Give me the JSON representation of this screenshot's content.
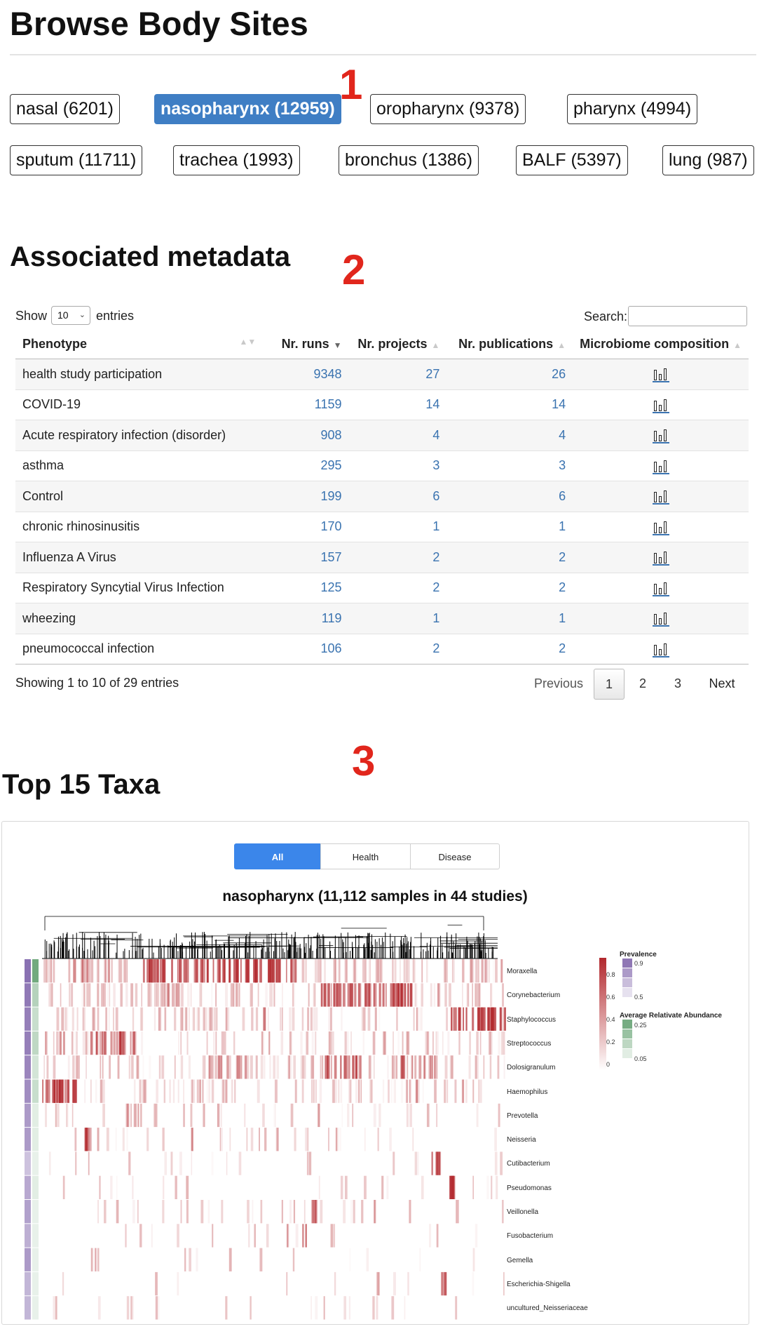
{
  "body_sites": {
    "title": "Browse Body Sites",
    "buttons": [
      {
        "label": "nasal (6201)",
        "active": false
      },
      {
        "label": "nasopharynx (12959)",
        "active": true
      },
      {
        "label": "oropharynx (9378)",
        "active": false
      },
      {
        "label": "pharynx (4994)",
        "active": false
      },
      {
        "label": "sputum (11711)",
        "active": false
      },
      {
        "label": "trachea (1993)",
        "active": false
      },
      {
        "label": "bronchus (1386)",
        "active": false
      },
      {
        "label": "BALF (5397)",
        "active": false
      },
      {
        "label": "lung (987)",
        "active": false
      }
    ]
  },
  "markers": [
    "1",
    "2",
    "3"
  ],
  "metadata": {
    "title": "Associated metadata",
    "show_label": "Show",
    "show_value": "10",
    "entries_label": "entries",
    "search_label": "Search:",
    "search_value": "",
    "columns": [
      "Phenotype",
      "Nr. runs",
      "Nr. projects",
      "Nr. publications",
      "Microbiome composition"
    ],
    "sorted_column": "Nr. runs",
    "rows": [
      {
        "phenotype": "health study participation",
        "runs": "9348",
        "projects": "27",
        "publications": "26"
      },
      {
        "phenotype": "COVID-19",
        "runs": "1159",
        "projects": "14",
        "publications": "14"
      },
      {
        "phenotype": "Acute respiratory infection (disorder)",
        "runs": "908",
        "projects": "4",
        "publications": "4"
      },
      {
        "phenotype": "asthma",
        "runs": "295",
        "projects": "3",
        "publications": "3"
      },
      {
        "phenotype": "Control",
        "runs": "199",
        "projects": "6",
        "publications": "6"
      },
      {
        "phenotype": "chronic rhinosinusitis",
        "runs": "170",
        "projects": "1",
        "publications": "1"
      },
      {
        "phenotype": "Influenza A Virus",
        "runs": "157",
        "projects": "2",
        "publications": "2"
      },
      {
        "phenotype": "Respiratory Syncytial Virus Infection",
        "runs": "125",
        "projects": "2",
        "publications": "2"
      },
      {
        "phenotype": "wheezing",
        "runs": "119",
        "projects": "1",
        "publications": "1"
      },
      {
        "phenotype": "pneumococcal infection",
        "runs": "106",
        "projects": "2",
        "publications": "2"
      }
    ],
    "info": "Showing 1 to 10 of 29 entries",
    "pagination": {
      "previous": "Previous",
      "pages": [
        "1",
        "2",
        "3"
      ],
      "current": "1",
      "next": "Next"
    },
    "icon": "bar-chart-icon",
    "link_color": "#3a73b0"
  },
  "taxa": {
    "title": "Top 15 Taxa",
    "tabs": [
      {
        "label": "All",
        "active": true
      },
      {
        "label": "Health",
        "active": false
      },
      {
        "label": "Disease",
        "active": false
      }
    ],
    "heatmap_title": "nasopharynx (11,112 samples in 44 studies)",
    "taxa_names": [
      "Moraxella",
      "Corynebacterium",
      "Staphylococcus",
      "Streptococcus",
      "Dolosigranulum",
      "Haemophilus",
      "Prevotella",
      "Neisseria",
      "Cutibacterium",
      "Pseudomonas",
      "Veillonella",
      "Fusobacterium",
      "Gemella",
      "Escherichia-Shigella",
      "uncultured_Neisseriaceae"
    ],
    "prevalence": [
      0.9,
      0.85,
      0.8,
      0.8,
      0.75,
      0.7,
      0.6,
      0.6,
      0.3,
      0.5,
      0.55,
      0.45,
      0.6,
      0.4,
      0.4
    ],
    "avg_abundance": [
      0.25,
      0.12,
      0.08,
      0.1,
      0.06,
      0.08,
      0.03,
      0.03,
      0.02,
      0.03,
      0.02,
      0.02,
      0.02,
      0.02,
      0.02
    ],
    "legend": {
      "scale_ticks": [
        "0.8",
        "0.6",
        "0.4",
        "0.2",
        "0"
      ],
      "prevalence_title": "Prevalence",
      "prevalence_ticks": [
        "0.9",
        "0.5"
      ],
      "abundance_title": "Average Relativate Abundance",
      "abundance_ticks": [
        "0.25",
        "0.05"
      ]
    },
    "colors": {
      "heat": "#b2282d",
      "prevalence": "#7b5fa8",
      "abundance": "#5e9e6c",
      "tab_active": "#3b86ea"
    }
  },
  "colors": {
    "active_button": "#3f7ec4",
    "marker": "#e1261c"
  }
}
